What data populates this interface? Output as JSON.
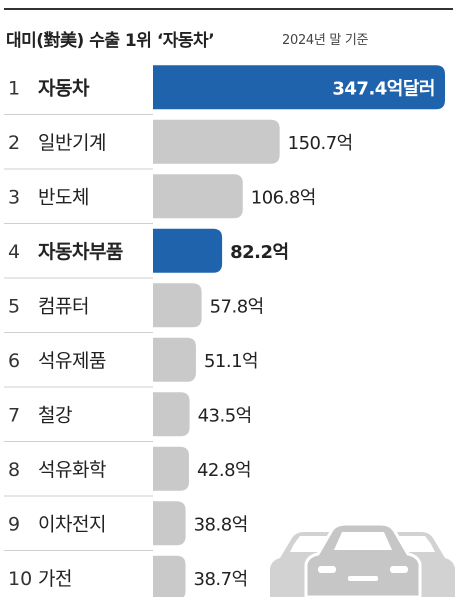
{
  "chart_data": {
    "type": "bar",
    "orientation": "horizontal",
    "title": "대미(對美) 수출 1위 ‘자동차’",
    "subtitle": "2024년 말 기준",
    "ranks": [
      "1",
      "2",
      "3",
      "4",
      "5",
      "6",
      "7",
      "8",
      "9",
      "10"
    ],
    "categories": [
      "자동차",
      "일반기계",
      "반도체",
      "자동차부품",
      "컴퓨터",
      "석유제품",
      "철강",
      "석유화학",
      "이차전지",
      "가전"
    ],
    "values": [
      347.4,
      150.7,
      106.8,
      82.2,
      57.8,
      51.1,
      43.5,
      42.8,
      38.8,
      38.7
    ],
    "value_labels": [
      "347.4억달러",
      "150.7억",
      "106.8억",
      "82.2억",
      "57.8억",
      "51.1억",
      "43.5억",
      "42.8억",
      "38.8억",
      "38.7억"
    ],
    "highlighted": [
      "자동차",
      "자동차부품"
    ],
    "colors": {
      "highlight": "#1f63ad",
      "bar": "#c9c9c9",
      "highlight_text": "#ffffff"
    },
    "xlim": [
      0,
      347.4
    ],
    "grid": false,
    "legend": "none"
  },
  "decoration": {
    "icon": "cars-icon"
  }
}
